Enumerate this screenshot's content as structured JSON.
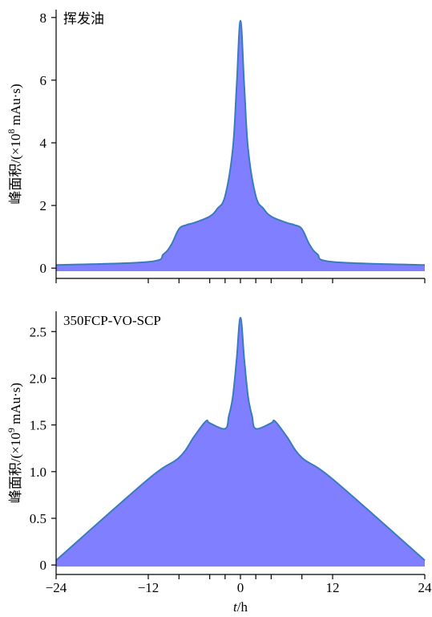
{
  "colors": {
    "fill": "#7f7fff",
    "line": "#3a7bbd",
    "axis": "#000000"
  },
  "x_axis": {
    "label_italic": "t",
    "label_rest": "/h",
    "ticks": [
      -24,
      -12,
      0,
      12,
      24
    ],
    "tick_labels": [
      "−24",
      "−12",
      "0",
      "12",
      "24"
    ],
    "minor_ticks": [
      -24,
      -12,
      -8,
      -4,
      -2,
      0,
      2,
      4,
      8,
      12,
      24
    ]
  },
  "chart_data": [
    {
      "type": "area",
      "title": "挥发油",
      "ylabel": "峰面积/(×10",
      "ylabel_sup": "8",
      "ylabel_tail": " mAu·s)",
      "xlim": [
        -24,
        24
      ],
      "ylim": [
        -0.2,
        8.2
      ],
      "yticks": [
        0,
        2,
        4,
        6,
        8
      ],
      "ytick_labels": [
        "0",
        "2",
        "4",
        "6",
        "8"
      ],
      "x": [
        -24,
        -12,
        -10,
        -9,
        -8,
        -7,
        -6,
        -4,
        -3,
        -2,
        -1,
        -0.5,
        0,
        0.5,
        1,
        2,
        3,
        4,
        6,
        7,
        8,
        9,
        10,
        12,
        24
      ],
      "y": [
        0.1,
        0.2,
        0.45,
        0.75,
        1.25,
        1.38,
        1.45,
        1.65,
        1.9,
        2.3,
        3.8,
        5.8,
        7.9,
        5.8,
        3.8,
        2.3,
        1.9,
        1.65,
        1.45,
        1.38,
        1.25,
        0.75,
        0.45,
        0.2,
        0.1
      ]
    },
    {
      "type": "area",
      "title": "350FCP-VO-SCP",
      "ylabel": "峰面积/(×10",
      "ylabel_sup": "9",
      "ylabel_tail": " mAu·s)",
      "xlim": [
        -24,
        24
      ],
      "ylim": [
        -0.05,
        2.7
      ],
      "yticks": [
        0,
        0.5,
        1.0,
        1.5,
        2.0,
        2.5
      ],
      "ytick_labels": [
        "0",
        "0.5",
        "1.0",
        "1.5",
        "2.0",
        "2.5"
      ],
      "x": [
        -24,
        -12,
        -8,
        -6,
        -4.5,
        -4,
        -2,
        -1.5,
        -1,
        -0.5,
        0,
        0.5,
        1,
        1.5,
        2,
        4,
        4.5,
        6,
        8,
        12,
        24
      ],
      "y": [
        0.05,
        0.92,
        1.15,
        1.38,
        1.54,
        1.52,
        1.46,
        1.6,
        1.8,
        2.2,
        2.65,
        2.2,
        1.8,
        1.6,
        1.46,
        1.52,
        1.54,
        1.38,
        1.15,
        0.92,
        0.05
      ]
    }
  ]
}
